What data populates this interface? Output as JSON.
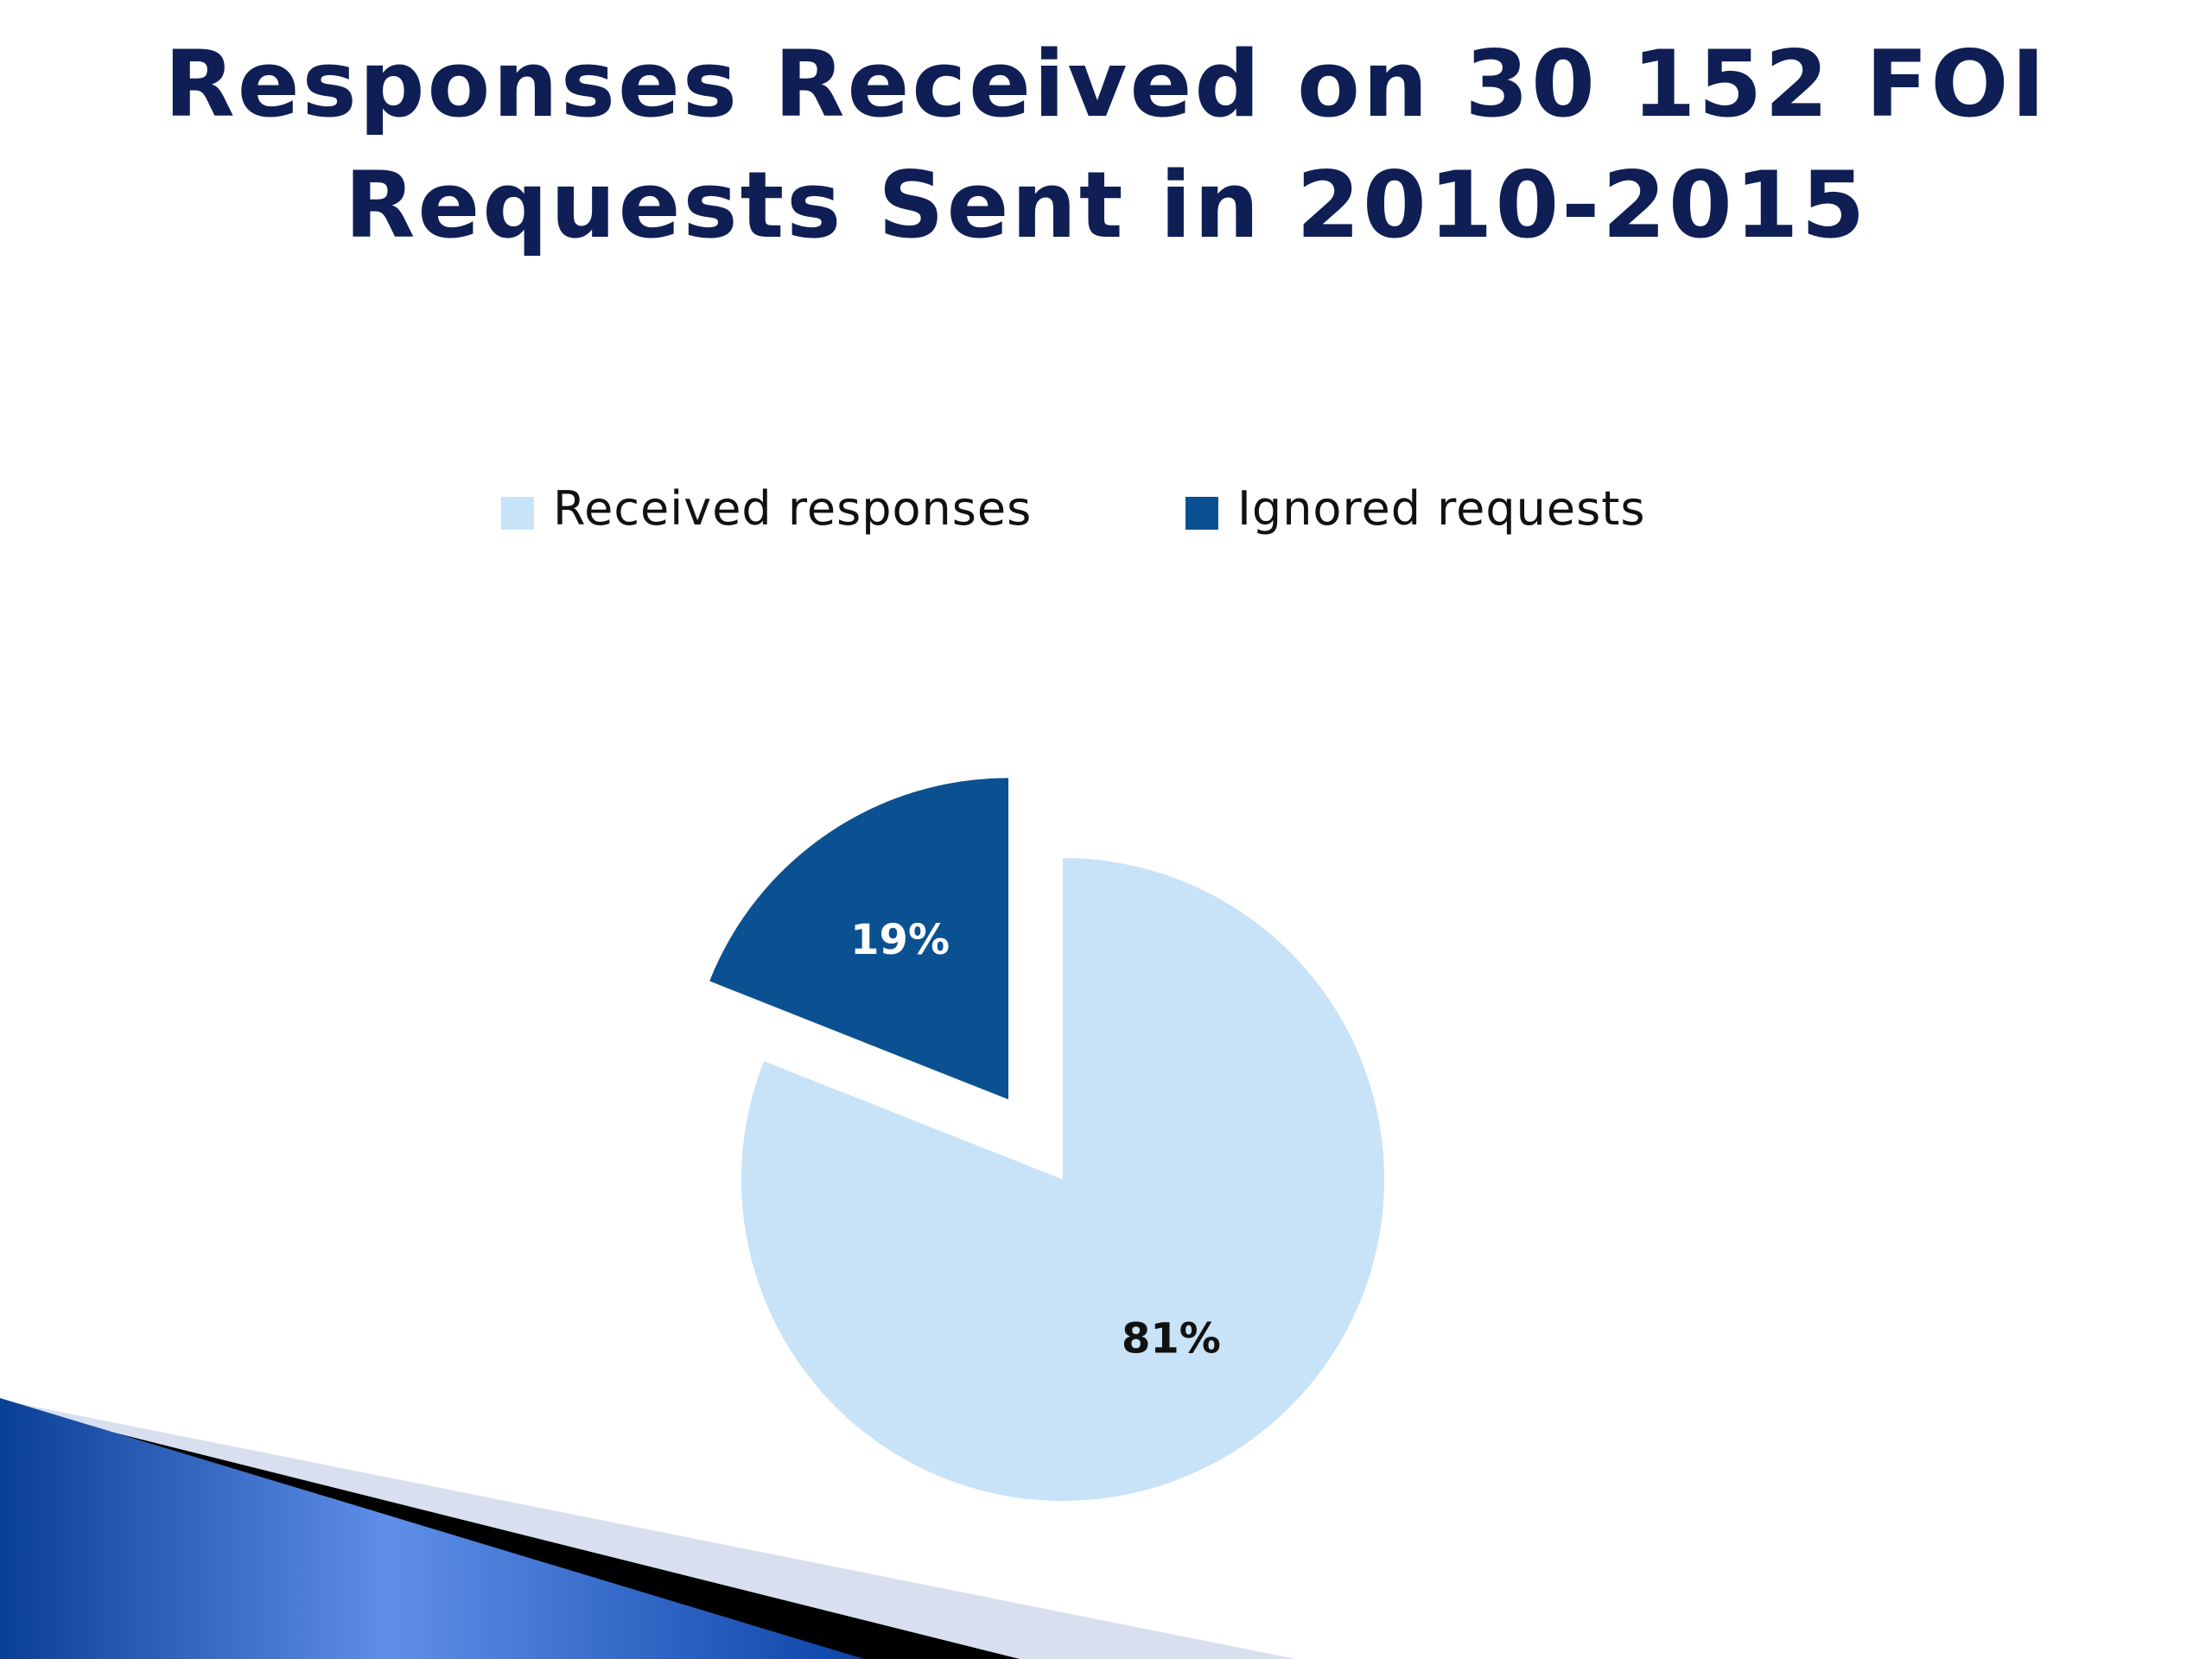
{
  "slide": {
    "title_line1": "Responses Received on 30 152 FOI",
    "title_line2": "Requests Sent in 2010-2015"
  },
  "colors": {
    "title": "#0f1f55",
    "received": "#c8e2f7",
    "ignored": "#0b5192",
    "decor_blue": "#1a4fa8",
    "decor_light": "#d8e0f0"
  },
  "chart_data": {
    "type": "pie",
    "title": "Responses Received on 30 152 FOI Requests Sent in 2010-2015",
    "legend_position": "top",
    "slices": [
      {
        "label": "Received responses",
        "value": 81,
        "value_label": "81%",
        "color": "#c8e2f7",
        "label_color": "#111111",
        "exploded": false
      },
      {
        "label": "Ignored requests",
        "value": 19,
        "value_label": "19%",
        "color": "#0b5192",
        "label_color": "#ffffff",
        "exploded": true
      }
    ]
  }
}
